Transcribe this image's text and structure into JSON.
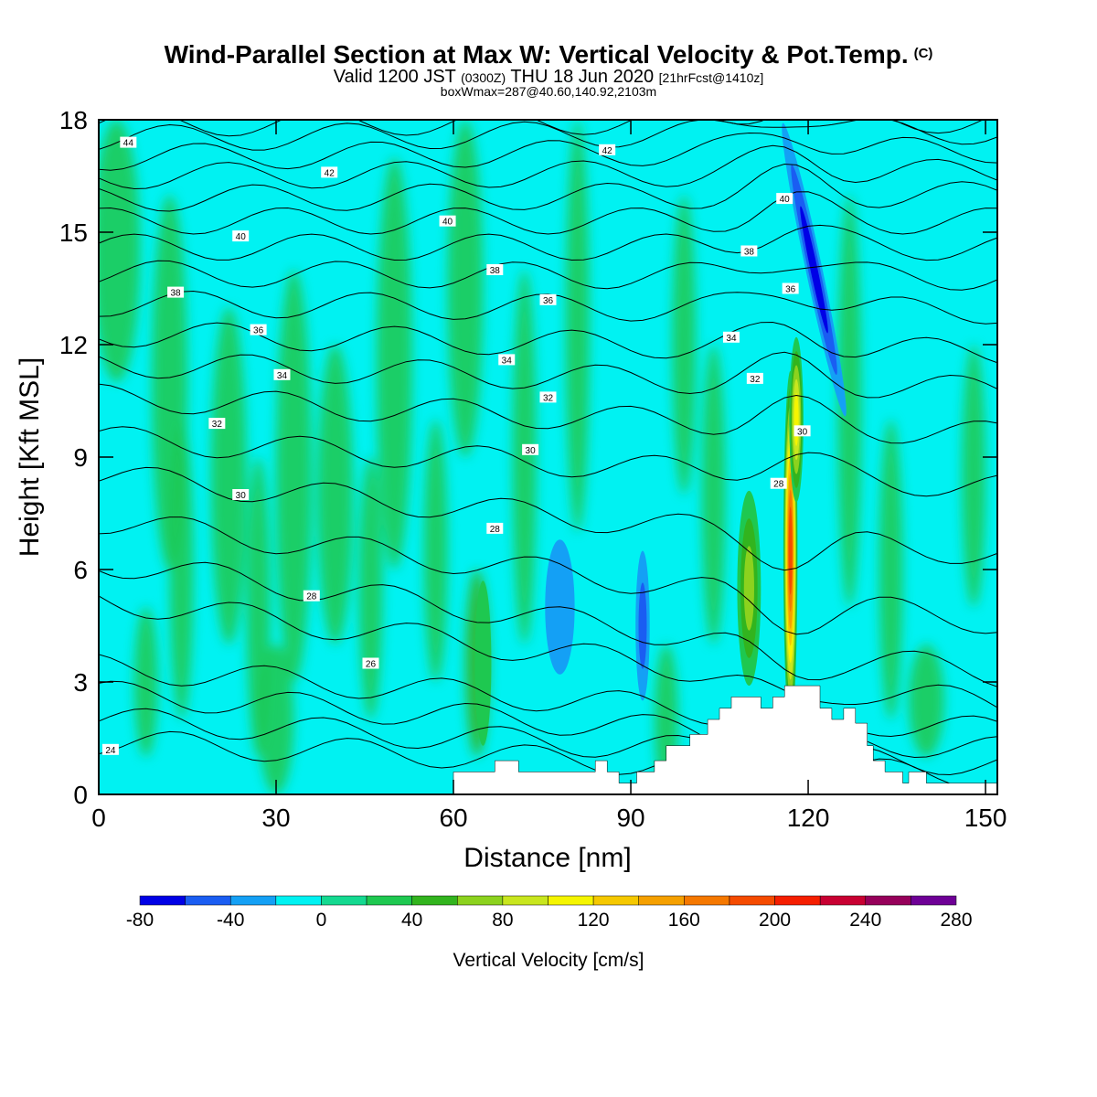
{
  "header": {
    "title": "Wind-Parallel Section at Max W: Vertical Velocity & Pot.Temp.",
    "title_mark": "(C)",
    "valid_prefix": "Valid 1200 JST",
    "valid_utc": "(0300Z)",
    "valid_date": "THU 18 Jun 2020",
    "forecast": "[21hrFcst@1410z]",
    "boxinfo": "boxWmax=287@40.60,140.92,2103m"
  },
  "colors": {
    "background_fill": "#00f2f2",
    "palette": [
      "#0000e6",
      "#1a5df2",
      "#14a0f5",
      "#00f2f2",
      "#14d990",
      "#1ec850",
      "#32b41e",
      "#8cd21e",
      "#c8e61e",
      "#f5f500",
      "#f5c800",
      "#f5a000",
      "#f57800",
      "#f54b00",
      "#f51e00",
      "#c80032",
      "#96005a",
      "#6e0096"
    ]
  },
  "chart_data": {
    "type": "heatmap",
    "title": "Wind-Parallel Section at Max W: Vertical Velocity & Pot.Temp.",
    "xlabel": "Distance [nm]",
    "ylabel": "Height [Kft MSL]",
    "xlim": [
      0,
      152
    ],
    "ylim": [
      0,
      18
    ],
    "x_ticks": [
      "0",
      "30",
      "60",
      "90",
      "120",
      "150"
    ],
    "x_tick_values": [
      0,
      30,
      60,
      90,
      120,
      150
    ],
    "y_ticks": [
      "0",
      "3",
      "6",
      "9",
      "12",
      "15",
      "18"
    ],
    "y_tick_values": [
      0,
      3,
      6,
      9,
      12,
      15,
      18
    ],
    "colorbar": {
      "label": "Vertical Velocity [cm/s]",
      "tick_labels": [
        "-80",
        "-40",
        "0",
        "40",
        "80",
        "120",
        "160",
        "200",
        "240",
        "280"
      ],
      "bounds": [
        -80,
        -60,
        -40,
        -20,
        0,
        20,
        40,
        60,
        80,
        100,
        120,
        140,
        160,
        180,
        200,
        220,
        240,
        260,
        280
      ]
    },
    "terrain": [
      [
        0,
        0
      ],
      [
        60,
        0
      ],
      [
        60,
        0.6
      ],
      [
        67,
        0.6
      ],
      [
        67,
        0.9
      ],
      [
        71,
        0.9
      ],
      [
        71,
        0.6
      ],
      [
        84,
        0.6
      ],
      [
        84,
        0.9
      ],
      [
        86,
        0.9
      ],
      [
        86,
        0.6
      ],
      [
        88,
        0.6
      ],
      [
        88,
        0.3
      ],
      [
        91,
        0.3
      ],
      [
        91,
        0.6
      ],
      [
        94,
        0.6
      ],
      [
        94,
        0.9
      ],
      [
        96,
        0.9
      ],
      [
        96,
        1.3
      ],
      [
        100,
        1.3
      ],
      [
        100,
        1.6
      ],
      [
        103,
        1.6
      ],
      [
        103,
        2.0
      ],
      [
        105,
        2.0
      ],
      [
        105,
        2.3
      ],
      [
        107,
        2.3
      ],
      [
        107,
        2.6
      ],
      [
        112,
        2.6
      ],
      [
        112,
        2.3
      ],
      [
        114,
        2.3
      ],
      [
        114,
        2.6
      ],
      [
        116,
        2.6
      ],
      [
        116,
        2.9
      ],
      [
        122,
        2.9
      ],
      [
        122,
        2.3
      ],
      [
        124,
        2.3
      ],
      [
        124,
        2.0
      ],
      [
        126,
        2.0
      ],
      [
        126,
        2.3
      ],
      [
        128,
        2.3
      ],
      [
        128,
        1.9
      ],
      [
        130,
        1.9
      ],
      [
        130,
        1.3
      ],
      [
        131,
        1.3
      ],
      [
        131,
        0.9
      ],
      [
        133,
        0.9
      ],
      [
        133,
        0.6
      ],
      [
        136,
        0.6
      ],
      [
        136,
        0.3
      ],
      [
        137,
        0.3
      ],
      [
        137,
        0.6
      ],
      [
        140,
        0.6
      ],
      [
        140,
        0.3
      ],
      [
        152,
        0.3
      ],
      [
        152,
        0
      ]
    ],
    "contour_labels": [
      {
        "text": "44",
        "x": 5,
        "y": 17.4
      },
      {
        "text": "42",
        "x": 39,
        "y": 16.6
      },
      {
        "text": "42",
        "x": 86,
        "y": 17.2
      },
      {
        "text": "40",
        "x": 24,
        "y": 14.9
      },
      {
        "text": "40",
        "x": 59,
        "y": 15.3
      },
      {
        "text": "40",
        "x": 116,
        "y": 15.9
      },
      {
        "text": "38",
        "x": 13,
        "y": 13.4
      },
      {
        "text": "38",
        "x": 67,
        "y": 14.0
      },
      {
        "text": "38",
        "x": 110,
        "y": 14.5
      },
      {
        "text": "36",
        "x": 27,
        "y": 12.4
      },
      {
        "text": "36",
        "x": 76,
        "y": 13.2
      },
      {
        "text": "36",
        "x": 117,
        "y": 13.5
      },
      {
        "text": "34",
        "x": 31,
        "y": 11.2
      },
      {
        "text": "34",
        "x": 69,
        "y": 11.6
      },
      {
        "text": "34",
        "x": 107,
        "y": 12.2
      },
      {
        "text": "32",
        "x": 20,
        "y": 9.9
      },
      {
        "text": "32",
        "x": 76,
        "y": 10.6
      },
      {
        "text": "32",
        "x": 111,
        "y": 11.1
      },
      {
        "text": "30",
        "x": 24,
        "y": 8.0
      },
      {
        "text": "30",
        "x": 73,
        "y": 9.2
      },
      {
        "text": "30",
        "x": 119,
        "y": 9.7
      },
      {
        "text": "28",
        "x": 67,
        "y": 7.1
      },
      {
        "text": "28",
        "x": 115,
        "y": 8.3
      },
      {
        "text": "28",
        "x": 36,
        "y": 5.3
      },
      {
        "text": "26",
        "x": 46,
        "y": 3.5
      },
      {
        "text": "24",
        "x": 2,
        "y": 1.2
      }
    ],
    "isentropes": [
      {
        "theta": 24,
        "y0": 1.4,
        "y1": 0.5
      },
      {
        "theta": 25,
        "y0": 2.0,
        "y1": 0.8
      },
      {
        "theta": 26,
        "y0": 2.7,
        "y1": 1.2
      },
      {
        "theta": 27,
        "y0": 3.4,
        "y1": 1.7
      },
      {
        "theta": 28,
        "y0": 5.2,
        "y1": 2.4
      },
      {
        "theta": 29,
        "y0": 6.2,
        "y1": 3.2
      },
      {
        "theta": 30,
        "y0": 7.3,
        "y1": 4.6
      },
      {
        "theta": 31,
        "y0": 8.5,
        "y1": 6.4
      },
      {
        "theta": 32,
        "y0": 9.5,
        "y1": 8.2
      },
      {
        "theta": 33,
        "y0": 10.6,
        "y1": 9.6
      },
      {
        "theta": 34,
        "y0": 11.5,
        "y1": 10.8
      },
      {
        "theta": 35,
        "y0": 12.3,
        "y1": 11.8
      },
      {
        "theta": 36,
        "y0": 13.1,
        "y1": 12.9
      },
      {
        "theta": 37,
        "y0": 13.9,
        "y1": 13.8
      },
      {
        "theta": 38,
        "y0": 14.6,
        "y1": 14.6
      },
      {
        "theta": 39,
        "y0": 15.3,
        "y1": 15.3
      },
      {
        "theta": 40,
        "y0": 15.9,
        "y1": 16.0
      },
      {
        "theta": 41,
        "y0": 16.5,
        "y1": 16.6
      },
      {
        "theta": 42,
        "y0": 17.0,
        "y1": 17.2
      },
      {
        "theta": 43,
        "y0": 17.5,
        "y1": 17.7
      },
      {
        "theta": 44,
        "y0": 17.9,
        "y1": 18.0
      }
    ],
    "velocity_features": [
      {
        "label": "updraft-core",
        "x": 117,
        "y": 6.5,
        "w": 200
      },
      {
        "label": "updraft-upper",
        "x": 118,
        "y": 10,
        "w": 120
      },
      {
        "label": "updraft-west",
        "x": 110,
        "y": 5.5,
        "w": 70
      },
      {
        "label": "downdraft-upper",
        "x": 121,
        "y": 14,
        "w": -80
      },
      {
        "label": "downdraft-mid-1",
        "x": 92,
        "y": 4.5,
        "w": -60
      },
      {
        "label": "downdraft-mid-2",
        "x": 78,
        "y": 5,
        "w": -30
      },
      {
        "label": "updraft-low",
        "x": 65,
        "y": 3.5,
        "w": 40
      }
    ]
  }
}
